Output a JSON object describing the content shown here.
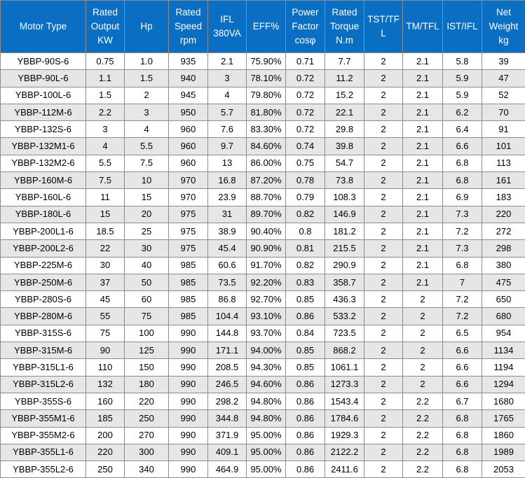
{
  "columns": [
    {
      "key": "type",
      "label_lines": [
        "Motor Type"
      ]
    },
    {
      "key": "kw",
      "label_lines": [
        "Rated",
        "Output",
        "KW"
      ]
    },
    {
      "key": "hp",
      "label_lines": [
        "Hp"
      ]
    },
    {
      "key": "rpm",
      "label_lines": [
        "Rated",
        "Speed",
        "rpm"
      ]
    },
    {
      "key": "ifl",
      "label_lines": [
        "IFL",
        "380VA"
      ]
    },
    {
      "key": "eff",
      "label_lines": [
        "EFF%"
      ]
    },
    {
      "key": "pf",
      "label_lines": [
        "Power",
        "Factor",
        "cosφ"
      ]
    },
    {
      "key": "torque",
      "label_lines": [
        "Rated",
        "Torque",
        "N.m"
      ]
    },
    {
      "key": "tst",
      "label_lines": [
        "TST/TF",
        "L"
      ]
    },
    {
      "key": "tm",
      "label_lines": [
        "TM/TFL"
      ]
    },
    {
      "key": "ist",
      "label_lines": [
        "IST/IFL"
      ]
    },
    {
      "key": "weight",
      "label_lines": [
        "Net",
        "Weight",
        "kg"
      ]
    }
  ],
  "rows": [
    [
      "YBBP-90S-6",
      "0.75",
      "1.0",
      "935",
      "2.1",
      "75.90%",
      "0.71",
      "7.7",
      "2",
      "2.1",
      "5.8",
      "39"
    ],
    [
      "YBBP-90L-6",
      "1.1",
      "1.5",
      "940",
      "3",
      "78.10%",
      "0.72",
      "11.2",
      "2",
      "2.1",
      "5.9",
      "47"
    ],
    [
      "YBBP-100L-6",
      "1.5",
      "2",
      "945",
      "4",
      "79.80%",
      "0.72",
      "15.2",
      "2",
      "2.1",
      "5.9",
      "52"
    ],
    [
      "YBBP-112M-6",
      "2.2",
      "3",
      "950",
      "5.7",
      "81.80%",
      "0.72",
      "22.1",
      "2",
      "2.1",
      "6.2",
      "70"
    ],
    [
      "YBBP-132S-6",
      "3",
      "4",
      "960",
      "7.6",
      "83.30%",
      "0.72",
      "29.8",
      "2",
      "2.1",
      "6.4",
      "91"
    ],
    [
      "YBBP-132M1-6",
      "4",
      "5.5",
      "960",
      "9.7",
      "84.60%",
      "0.74",
      "39.8",
      "2",
      "2.1",
      "6.6",
      "101"
    ],
    [
      "YBBP-132M2-6",
      "5.5",
      "7.5",
      "960",
      "13",
      "86.00%",
      "0.75",
      "54.7",
      "2",
      "2.1",
      "6.8",
      "113"
    ],
    [
      "YBBP-160M-6",
      "7.5",
      "10",
      "970",
      "16.8",
      "87.20%",
      "0.78",
      "73.8",
      "2",
      "2.1",
      "6.8",
      "161"
    ],
    [
      "YBBP-160L-6",
      "11",
      "15",
      "970",
      "23.9",
      "88.70%",
      "0.79",
      "108.3",
      "2",
      "2.1",
      "6.9",
      "183"
    ],
    [
      "YBBP-180L-6",
      "15",
      "20",
      "975",
      "31",
      "89.70%",
      "0.82",
      "146.9",
      "2",
      "2.1",
      "7.3",
      "220"
    ],
    [
      "YBBP-200L1-6",
      "18.5",
      "25",
      "975",
      "38.9",
      "90.40%",
      "0.8",
      "181.2",
      "2",
      "2.1",
      "7.2",
      "272"
    ],
    [
      "YBBP-200L2-6",
      "22",
      "30",
      "975",
      "45.4",
      "90.90%",
      "0.81",
      "215.5",
      "2",
      "2.1",
      "7.3",
      "298"
    ],
    [
      "YBBP-225M-6",
      "30",
      "40",
      "985",
      "60.6",
      "91.70%",
      "0.82",
      "290.9",
      "2",
      "2.1",
      "6.8",
      "380"
    ],
    [
      "YBBP-250M-6",
      "37",
      "50",
      "985",
      "73.5",
      "92.20%",
      "0.83",
      "358.7",
      "2",
      "2.1",
      "7",
      "475"
    ],
    [
      "YBBP-280S-6",
      "45",
      "60",
      "985",
      "86.8",
      "92.70%",
      "0.85",
      "436.3",
      "2",
      "2",
      "7.2",
      "650"
    ],
    [
      "YBBP-280M-6",
      "55",
      "75",
      "985",
      "104.4",
      "93.10%",
      "0.86",
      "533.2",
      "2",
      "2",
      "7.2",
      "680"
    ],
    [
      "YBBP-315S-6",
      "75",
      "100",
      "990",
      "144.8",
      "93.70%",
      "0.84",
      "723.5",
      "2",
      "2",
      "6.5",
      "954"
    ],
    [
      "YBBP-315M-6",
      "90",
      "125",
      "990",
      "171.1",
      "94.00%",
      "0.85",
      "868.2",
      "2",
      "2",
      "6.6",
      "1134"
    ],
    [
      "YBBP-315L1-6",
      "110",
      "150",
      "990",
      "208.5",
      "94.30%",
      "0.85",
      "1061.1",
      "2",
      "2",
      "6.6",
      "1194"
    ],
    [
      "YBBP-315L2-6",
      "132",
      "180",
      "990",
      "246.5",
      "94.60%",
      "0.86",
      "1273.3",
      "2",
      "2",
      "6.6",
      "1294"
    ],
    [
      "YBBP-355S-6",
      "160",
      "220",
      "990",
      "298.2",
      "94.80%",
      "0.86",
      "1543.4",
      "2",
      "2.2",
      "6.7",
      "1680"
    ],
    [
      "YBBP-355M1-6",
      "185",
      "250",
      "990",
      "344.8",
      "94.80%",
      "0.86",
      "1784.6",
      "2",
      "2.2",
      "6.8",
      "1765"
    ],
    [
      "YBBP-355M2-6",
      "200",
      "270",
      "990",
      "371.9",
      "95.00%",
      "0.86",
      "1929.3",
      "2",
      "2.2",
      "6.8",
      "1860"
    ],
    [
      "YBBP-355L1-6",
      "220",
      "300",
      "990",
      "409.1",
      "95.00%",
      "0.86",
      "2122.2",
      "2",
      "2.2",
      "6.8",
      "1989"
    ],
    [
      "YBBP-355L2-6",
      "250",
      "340",
      "990",
      "464.9",
      "95.00%",
      "0.86",
      "2411.6",
      "2",
      "2.2",
      "6.8",
      "2053"
    ]
  ],
  "colors": {
    "header_bg": "#0a6fc2",
    "header_text": "#ffffff",
    "stripe_bg": "#e6e6e6",
    "border": "#8c8c8c"
  }
}
